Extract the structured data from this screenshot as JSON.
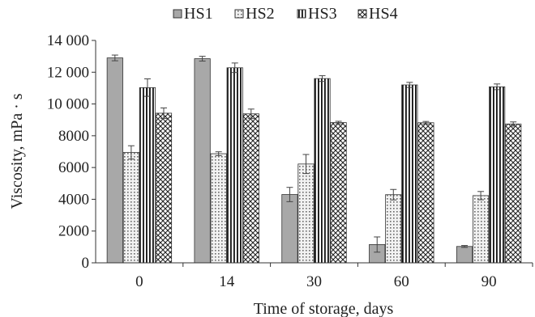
{
  "chart_data": {
    "type": "bar",
    "title": "",
    "xlabel": "Time of storage, days",
    "ylabel": "Viscosity, mPa · s",
    "categories": [
      "0",
      "14",
      "30",
      "60",
      "90"
    ],
    "ylim": [
      0,
      14000
    ],
    "yticks": [
      0,
      2000,
      4000,
      6000,
      8000,
      10000,
      12000,
      14000
    ],
    "ytick_labels": [
      "0",
      "2000",
      "4000",
      "6000",
      "8000",
      "10 000",
      "12 000",
      "14 000"
    ],
    "legend_position": "top",
    "grid": false,
    "series": [
      {
        "name": "HS1",
        "pattern": "solid",
        "color": "#a8a8a8",
        "values": [
          12900,
          12850,
          4300,
          1150,
          1030
        ],
        "errors": [
          180,
          150,
          450,
          480,
          60
        ]
      },
      {
        "name": "HS2",
        "pattern": "dots",
        "color": "#e4e4e4",
        "values": [
          6950,
          6870,
          6220,
          4290,
          4230
        ],
        "errors": [
          420,
          120,
          600,
          330,
          260
        ]
      },
      {
        "name": "HS3",
        "pattern": "vertical-lines",
        "color": "#ffffff",
        "values": [
          11030,
          12280,
          11600,
          11200,
          11080
        ],
        "errors": [
          550,
          300,
          180,
          160,
          180
        ]
      },
      {
        "name": "HS4",
        "pattern": "crosshatch",
        "color": "#ffffff",
        "values": [
          9420,
          9380,
          8830,
          8820,
          8740
        ],
        "errors": [
          330,
          300,
          80,
          80,
          130
        ]
      }
    ]
  }
}
